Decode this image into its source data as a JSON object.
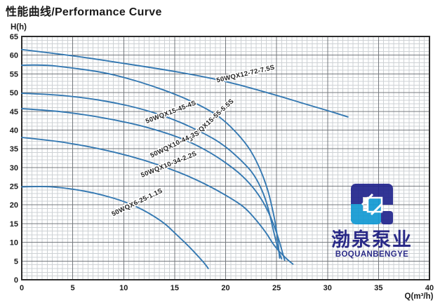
{
  "title": "性能曲线/Performance Curve",
  "brand": {
    "cn": "渤泉泵业",
    "en": "BOQUANBENGYE"
  },
  "colors": {
    "curve": "#3579b2",
    "grid_minor": "#cdd1d4",
    "grid_major": "#75797e",
    "border": "#2d2d2d",
    "tick_text": "#1c1c1c",
    "curve_label_text": "#222222",
    "logo_navy": "#23268e",
    "logo_cyan": "#149ad3"
  },
  "chart_data": {
    "type": "line",
    "title": "性能曲线/Performance Curve",
    "xlabel": "Q(m³/h)",
    "ylabel": "H(h)",
    "xlim": [
      0,
      40
    ],
    "ylim": [
      0,
      65
    ],
    "x_ticks": [
      0,
      5,
      10,
      15,
      20,
      25,
      30,
      35,
      40
    ],
    "y_ticks": [
      0,
      5,
      10,
      15,
      20,
      25,
      30,
      35,
      40,
      45,
      50,
      55,
      60,
      65
    ],
    "grid": {
      "x_minor_step": 0.5,
      "x_major_step": 5,
      "y_minor_step": 1,
      "y_major_step": 5,
      "grid_on": true
    },
    "legend_position": "labels-on-curves",
    "series": [
      {
        "name": "50WQX12-72-7.5S",
        "label": {
          "x": 22.0,
          "y": 54.5,
          "angle": -13
        },
        "points": [
          [
            0,
            61.5
          ],
          [
            5,
            59.9
          ],
          [
            10,
            57.8
          ],
          [
            15,
            55.7
          ],
          [
            20,
            53.1
          ],
          [
            25,
            49.3
          ],
          [
            28,
            46.8
          ],
          [
            30,
            45.2
          ],
          [
            32,
            43.5
          ]
        ]
      },
      {
        "name": "50WQX15-55-5.5S",
        "label": {
          "x": 18.7,
          "y": 42.2,
          "angle": -43
        },
        "points": [
          [
            0,
            57.3
          ],
          [
            2,
            57.5
          ],
          [
            5,
            56.6
          ],
          [
            8,
            55.4
          ],
          [
            10,
            54.1
          ],
          [
            12,
            52.5
          ],
          [
            15,
            49.7
          ],
          [
            18,
            46.0
          ],
          [
            20,
            42.4
          ],
          [
            22,
            36.5
          ],
          [
            23,
            32.0
          ],
          [
            24,
            25.5
          ],
          [
            24.6,
            19.0
          ],
          [
            25,
            13.5
          ],
          [
            25.3,
            5.8
          ]
        ]
      },
      {
        "name": "50WQX15-45-4S",
        "label": {
          "x": 14.7,
          "y": 44.3,
          "angle": -21
        },
        "points": [
          [
            0,
            49.8
          ],
          [
            3,
            49.5
          ],
          [
            6,
            48.7
          ],
          [
            9,
            47.4
          ],
          [
            12,
            45.5
          ],
          [
            15,
            42.8
          ],
          [
            18,
            39.0
          ],
          [
            20,
            35.7
          ],
          [
            22,
            30.7
          ],
          [
            23,
            27.3
          ],
          [
            24,
            21.3
          ],
          [
            24.7,
            13.0
          ],
          [
            25.2,
            7.5
          ],
          [
            25.5,
            5.6
          ]
        ]
      },
      {
        "name": "50WQX10-44-3S",
        "label": {
          "x": 15.1,
          "y": 35.7,
          "angle": -26
        },
        "points": [
          [
            0,
            45.7
          ],
          [
            3,
            45.2
          ],
          [
            6,
            44.2
          ],
          [
            9,
            42.8
          ],
          [
            12,
            41.0
          ],
          [
            15,
            38.5
          ],
          [
            17,
            36.2
          ],
          [
            19,
            33.2
          ],
          [
            21,
            29.3
          ],
          [
            22,
            26.8
          ],
          [
            23,
            23.7
          ],
          [
            24,
            19.4
          ],
          [
            25,
            12.9
          ],
          [
            25.8,
            5.2
          ]
        ]
      },
      {
        "name": "50WQX10-34-2.2S",
        "label": {
          "x": 14.5,
          "y": 30.3,
          "angle": -22
        },
        "points": [
          [
            0,
            38.0
          ],
          [
            3,
            37.2
          ],
          [
            6,
            35.9
          ],
          [
            9,
            34.2
          ],
          [
            12,
            32.0
          ],
          [
            15,
            29.2
          ],
          [
            17,
            26.9
          ],
          [
            19,
            24.2
          ],
          [
            21,
            21.0
          ],
          [
            22,
            19.0
          ],
          [
            23,
            16.0
          ],
          [
            24,
            12.5
          ],
          [
            24.5,
            10.2
          ],
          [
            25,
            8.3
          ],
          [
            26,
            5.5
          ],
          [
            26.6,
            4.2
          ]
        ]
      },
      {
        "name": "50WQX6-25-1.1S",
        "label": {
          "x": 11.4,
          "y": 20.2,
          "angle": -26
        },
        "points": [
          [
            0,
            24.8
          ],
          [
            2,
            25.0
          ],
          [
            4,
            24.6
          ],
          [
            6,
            23.8
          ],
          [
            8,
            22.6
          ],
          [
            10,
            21.0
          ],
          [
            12,
            18.6
          ],
          [
            14,
            15.2
          ],
          [
            15,
            12.5
          ],
          [
            16,
            10.0
          ],
          [
            17,
            7.2
          ],
          [
            18,
            4.2
          ],
          [
            18.3,
            3.0
          ]
        ]
      }
    ]
  }
}
